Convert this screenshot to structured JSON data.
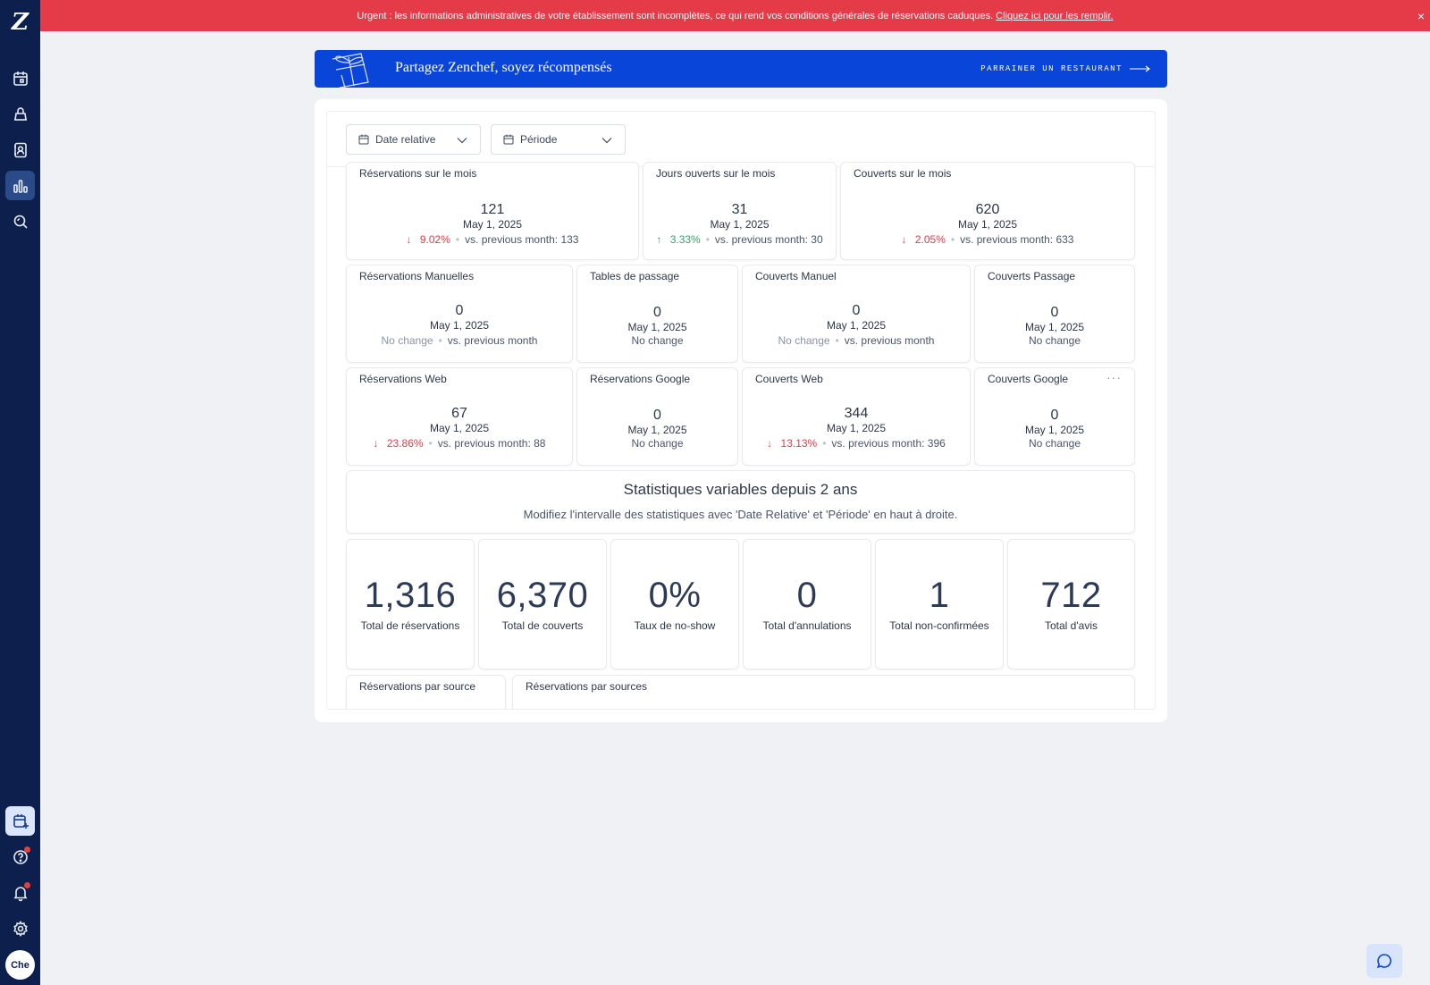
{
  "sidebar": {
    "logo": "Z",
    "nav": [
      {
        "name": "calendar-icon",
        "active": false
      },
      {
        "name": "tables-icon",
        "active": false
      },
      {
        "name": "contacts-icon",
        "active": false
      },
      {
        "name": "stats-icon",
        "active": true
      },
      {
        "name": "search-icon",
        "active": false
      }
    ],
    "bottom": [
      {
        "name": "booking-icon"
      },
      {
        "name": "help-icon",
        "notify": true
      },
      {
        "name": "bell-icon",
        "notify": true
      },
      {
        "name": "gear-icon"
      }
    ],
    "avatar": "Che"
  },
  "urgent": {
    "text": "Urgent : les informations administratives de votre établissement sont incomplètes, ce qui rend vos conditions générales de réservations caduques.",
    "link": "Cliquez ici pour les remplir.",
    "close": "×"
  },
  "referral": {
    "title": "Partagez Zenchef, soyez récompensés",
    "cta": "PARRAINER UN RESTAURANT"
  },
  "filters": {
    "relative_date": "Date relative",
    "period": "Période"
  },
  "row1": [
    {
      "title": "Réservations sur le mois",
      "value": "121",
      "date": "May 1, 2025",
      "trend": "down",
      "pct": "9.02%",
      "cmp": "vs. previous month: 133"
    },
    {
      "title": "Jours ouverts sur le mois",
      "value": "31",
      "date": "May 1, 2025",
      "trend": "up",
      "pct": "3.33%",
      "cmp": "vs. previous month: 30"
    },
    {
      "title": "Couverts sur le mois",
      "value": "620",
      "date": "May 1, 2025",
      "trend": "down",
      "pct": "2.05%",
      "cmp": "vs. previous month: 633"
    }
  ],
  "row2": [
    {
      "title": "Réservations Manuelles",
      "value": "0",
      "date": "May 1, 2025",
      "nochange": "No change",
      "cmp": "vs. previous month"
    },
    {
      "title": "Tables de passage",
      "value": "0",
      "date": "May 1, 2025",
      "nochange": "No change"
    },
    {
      "title": "Couverts Manuel",
      "value": "0",
      "date": "May 1, 2025",
      "nochange": "No change",
      "cmp": "vs. previous month"
    },
    {
      "title": "Couverts Passage",
      "value": "0",
      "date": "May 1, 2025",
      "nochange": "No change"
    }
  ],
  "row3": [
    {
      "title": "Réservations Web",
      "value": "67",
      "date": "May 1, 2025",
      "trend": "down",
      "pct": "23.86%",
      "cmp": "vs. previous month: 88"
    },
    {
      "title": "Réservations Google",
      "value": "0",
      "date": "May 1, 2025",
      "nochange": "No change"
    },
    {
      "title": "Couverts Web",
      "value": "344",
      "date": "May 1, 2025",
      "trend": "down",
      "pct": "13.13%",
      "cmp": "vs. previous month: 396"
    },
    {
      "title": "Couverts Google",
      "value": "0",
      "date": "May 1, 2025",
      "nochange": "No change",
      "more": "···"
    }
  ],
  "info": {
    "title": "Statistiques variables depuis 2 ans",
    "subtitle": "Modifiez l'intervalle des statistiques avec 'Date Relative' et 'Période' en haut à droite."
  },
  "totals": [
    {
      "value": "1,316",
      "label": "Total de réservations"
    },
    {
      "value": "6,370",
      "label": "Total de couverts"
    },
    {
      "value": "0%",
      "label": "Taux de no-show"
    },
    {
      "value": "0",
      "label": "Total d'annulations"
    },
    {
      "value": "1",
      "label": "Total non-confirmées"
    },
    {
      "value": "712",
      "label": "Total d'avis"
    }
  ],
  "bottom_cards": [
    {
      "title": "Réservations par source"
    },
    {
      "title": "Réservations par sources"
    }
  ]
}
